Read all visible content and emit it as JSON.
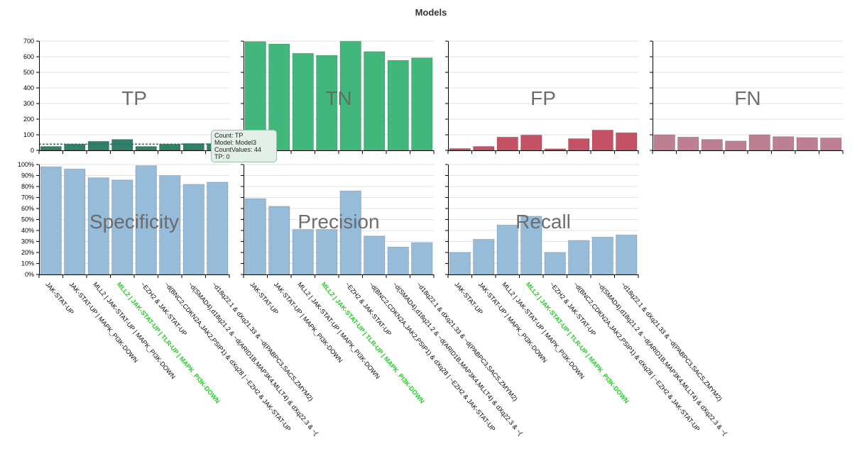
{
  "title": "Models",
  "chart_data": {
    "type": "bar",
    "categories": [
      "JAK-STAT-UP",
      "JAK-STAT-UP | MAPK_PI3K-DOWN",
      "MLL2 | JAK-STAT-UP | MAPK_PI3K-DOWN",
      "MLL2 | JAK-STAT-UP | TLR-UP | MAPK_PI3K-DOWN",
      "~EZH2 & JAK-STAT-UP",
      "~d(BNC2,CDKN2A,JAK2,PSIP1) & dXq28 | ~EZH2 & JAK-STAT-UP",
      "~d(SMAD4),d18q21.2 & ~d(ARID1B,MAP3K4,MLLT4) & dXq22.3 & ~(",
      "~d18q22.1 & dXq21.33 & ~d(PABPC3,SACS,ZMYM2)"
    ],
    "highlight_category": "MLL2 | JAK-STAT-UP | TLR-UP | MAPK_PI3K-DOWN",
    "highlight_color": "#22cc22",
    "count_panels": [
      {
        "name": "TP",
        "color": "#2f7f6a",
        "values": [
          25,
          40,
          58,
          70,
          25,
          40,
          44,
          44
        ],
        "reference": 40
      },
      {
        "name": "TN",
        "color": "#41b77c",
        "values": [
          697,
          682,
          622,
          609,
          699,
          633,
          577,
          593
        ]
      },
      {
        "name": "FP",
        "color": "#c45264",
        "values": [
          12,
          25,
          85,
          98,
          10,
          75,
          130,
          113
        ]
      },
      {
        "name": "FN",
        "color": "#bd7f92",
        "values": [
          100,
          85,
          70,
          60,
          100,
          88,
          82,
          80
        ]
      }
    ],
    "count_axis": {
      "ylim": [
        0,
        700
      ],
      "ticks": [
        "0",
        "100",
        "200",
        "300",
        "400",
        "500",
        "600",
        "700"
      ]
    },
    "rate_panels": [
      {
        "name": "Specificity",
        "color": "#96bcda",
        "values": [
          98,
          96,
          88,
          86,
          99,
          90,
          82,
          84
        ]
      },
      {
        "name": "Precision",
        "color": "#96bcda",
        "values": [
          69,
          62,
          41,
          41,
          76,
          35,
          25,
          29
        ]
      },
      {
        "name": "Recall",
        "color": "#96bcda",
        "values": [
          20,
          32,
          45,
          53,
          20,
          31,
          34,
          36
        ]
      }
    ],
    "rate_axis": {
      "ylim": [
        0,
        100
      ],
      "ticks": [
        "0%",
        "10%",
        "20%",
        "30%",
        "40%",
        "50%",
        "60%",
        "70%",
        "80%",
        "90%",
        "100%"
      ]
    },
    "grid": true
  },
  "tooltip": {
    "line1": "Count: TP",
    "line2": "Model: Model3",
    "line3": "CountValues: 44",
    "line4": "TP: 0"
  }
}
